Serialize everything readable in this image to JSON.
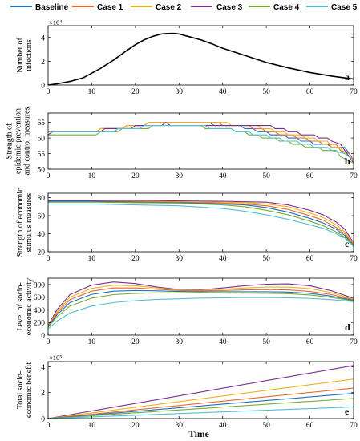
{
  "legend": [
    {
      "name": "Baseline",
      "color": "#1f6fbf"
    },
    {
      "name": "Case 1",
      "color": "#e8692a"
    },
    {
      "name": "Case 2",
      "color": "#ecb21e"
    },
    {
      "name": "Case 3",
      "color": "#7b2d8e"
    },
    {
      "name": "Case 4",
      "color": "#77ac30"
    },
    {
      "name": "Case 5",
      "color": "#4fbfd6"
    }
  ],
  "x_axis_label": "Time",
  "x_ticks": [
    "0",
    "10",
    "20",
    "30",
    "40",
    "50",
    "60",
    "70"
  ],
  "chart_data": [
    {
      "type": "line",
      "panel": "a",
      "ylabel": [
        "Number of",
        "infections"
      ],
      "multiplier": "×10⁴",
      "xlim": [
        0,
        70
      ],
      "ylim": [
        0,
        5
      ],
      "yticks": [
        "0",
        "2",
        "4"
      ],
      "series": [
        {
          "color": "#000000",
          "x": [
            0,
            2,
            5,
            8,
            10,
            12,
            15,
            18,
            20,
            22,
            24,
            26,
            28,
            29,
            30,
            32,
            35,
            38,
            40,
            45,
            50,
            55,
            60,
            65,
            70
          ],
          "y": [
            0,
            0.1,
            0.3,
            0.6,
            1.0,
            1.4,
            2.1,
            2.9,
            3.4,
            3.8,
            4.1,
            4.3,
            4.35,
            4.35,
            4.3,
            4.1,
            3.8,
            3.4,
            3.1,
            2.5,
            1.9,
            1.45,
            1.05,
            0.75,
            0.5
          ]
        }
      ]
    },
    {
      "type": "line",
      "panel": "b",
      "ylabel": [
        "Strength of",
        "epidemic prevention",
        "and control measures"
      ],
      "xlim": [
        0,
        70
      ],
      "ylim": [
        50,
        68
      ],
      "yticks": [
        "50",
        "55",
        "60",
        "65"
      ],
      "series": [
        {
          "color": "#1f6fbf",
          "x": [
            0,
            1,
            11,
            12,
            17,
            18,
            22,
            23,
            37,
            38,
            44,
            45,
            47,
            48,
            50,
            51,
            54,
            55,
            57,
            58,
            60,
            61,
            64,
            65,
            68,
            69,
            70
          ],
          "y": [
            62,
            62,
            62,
            63,
            63,
            64,
            64,
            65,
            65,
            64,
            64,
            63,
            63,
            62,
            62,
            61,
            61,
            60,
            60,
            59,
            59,
            58,
            58,
            57,
            57,
            55,
            53
          ]
        },
        {
          "color": "#e8692a",
          "x": [
            0,
            1,
            11,
            12,
            17,
            18,
            22,
            23,
            39,
            40,
            46,
            47,
            49,
            50,
            52,
            53,
            56,
            57,
            59,
            60,
            62,
            63,
            66,
            67,
            69,
            70
          ],
          "y": [
            62,
            62,
            62,
            63,
            63,
            64,
            64,
            65,
            65,
            64,
            64,
            63,
            63,
            62,
            62,
            61,
            61,
            60,
            60,
            59,
            59,
            58,
            58,
            56,
            55,
            53
          ]
        },
        {
          "color": "#ecb21e",
          "x": [
            0,
            1,
            11,
            12,
            17,
            18,
            22,
            23,
            41,
            42,
            48,
            49,
            51,
            52,
            54,
            55,
            58,
            59,
            61,
            62,
            64,
            65,
            67,
            68,
            70
          ],
          "y": [
            62,
            62,
            62,
            63,
            63,
            64,
            64,
            65,
            65,
            64,
            64,
            63,
            63,
            62,
            62,
            61,
            61,
            60,
            60,
            59,
            59,
            57,
            57,
            55,
            53
          ]
        },
        {
          "color": "#7b2d8e",
          "x": [
            0,
            1,
            12,
            13,
            19,
            20,
            26,
            27,
            28,
            43,
            44,
            51,
            52,
            54,
            55,
            57,
            58,
            61,
            62,
            64,
            65,
            67,
            68,
            70
          ],
          "y": [
            61,
            62,
            62,
            63,
            63,
            64,
            64,
            65,
            64,
            64,
            64,
            64,
            63,
            63,
            62,
            62,
            61,
            61,
            60,
            60,
            59,
            58,
            56,
            52
          ]
        },
        {
          "color": "#77ac30",
          "x": [
            0,
            1,
            11,
            12,
            16,
            17,
            23,
            24,
            35,
            36,
            42,
            43,
            45,
            46,
            48,
            49,
            52,
            53,
            55,
            56,
            58,
            59,
            62,
            63,
            66,
            67,
            70
          ],
          "y": [
            61,
            61,
            61,
            62,
            62,
            63,
            63,
            64,
            64,
            63,
            63,
            62,
            62,
            61,
            61,
            60,
            60,
            59,
            59,
            58,
            58,
            57,
            57,
            56,
            56,
            54,
            52
          ]
        },
        {
          "color": "#4fbfd6",
          "x": [
            0,
            10,
            11,
            15,
            16,
            21,
            22,
            36,
            37,
            42,
            43,
            46,
            47,
            50,
            51,
            53,
            54,
            57,
            58,
            60,
            61,
            64,
            65,
            68,
            70
          ],
          "y": [
            62,
            62,
            62,
            62,
            63,
            63,
            64,
            64,
            63,
            63,
            62,
            62,
            61,
            61,
            60,
            60,
            59,
            59,
            58,
            58,
            57,
            57,
            56,
            55,
            53
          ]
        }
      ]
    },
    {
      "type": "line",
      "panel": "c",
      "ylabel": [
        "Strength of economic",
        "stimulus measures"
      ],
      "xlim": [
        0,
        70
      ],
      "ylim": [
        20,
        85
      ],
      "yticks": [
        "20",
        "40",
        "60",
        "80"
      ],
      "series": [
        {
          "color": "#7b2d8e",
          "x": [
            0,
            10,
            20,
            30,
            40,
            45,
            50,
            55,
            60,
            63,
            66,
            68,
            70
          ],
          "y": [
            77,
            77,
            77,
            76.5,
            76,
            75.5,
            75,
            72,
            66,
            61,
            53,
            45,
            30
          ]
        },
        {
          "color": "#ecb21e",
          "x": [
            0,
            10,
            20,
            30,
            40,
            45,
            50,
            55,
            60,
            63,
            66,
            68,
            70
          ],
          "y": [
            76,
            76,
            76,
            75.5,
            75,
            74.5,
            73,
            70,
            63,
            58,
            50,
            42,
            29
          ]
        },
        {
          "color": "#e8692a",
          "x": [
            0,
            10,
            20,
            30,
            40,
            45,
            50,
            55,
            60,
            63,
            66,
            68,
            70
          ],
          "y": [
            76,
            76,
            75.5,
            75,
            74,
            73,
            71,
            67,
            60,
            55,
            47,
            40,
            28
          ]
        },
        {
          "color": "#1f6fbf",
          "x": [
            0,
            10,
            20,
            30,
            40,
            45,
            50,
            55,
            60,
            63,
            66,
            68,
            70
          ],
          "y": [
            76,
            76,
            75,
            74.5,
            73,
            72,
            69,
            64,
            57,
            52,
            45,
            38,
            27
          ]
        },
        {
          "color": "#77ac30",
          "x": [
            0,
            10,
            20,
            30,
            40,
            45,
            50,
            55,
            60,
            63,
            66,
            68,
            70
          ],
          "y": [
            75,
            75,
            74.5,
            74,
            72,
            70,
            66,
            61,
            54,
            49,
            42,
            36,
            27
          ]
        },
        {
          "color": "#4fbfd6",
          "x": [
            0,
            10,
            20,
            30,
            40,
            45,
            50,
            55,
            60,
            63,
            66,
            68,
            70
          ],
          "y": [
            73,
            73,
            72,
            71,
            68,
            65,
            61,
            56,
            50,
            46,
            40,
            35,
            26
          ]
        }
      ]
    },
    {
      "type": "line",
      "panel": "d",
      "ylabel": [
        "Level of  socio-",
        "economic activity"
      ],
      "xlim": [
        0,
        70
      ],
      "ylim": [
        0,
        900
      ],
      "yticks": [
        "0",
        "200",
        "400",
        "600",
        "800"
      ],
      "series": [
        {
          "color": "#7b2d8e",
          "x": [
            0,
            2,
            5,
            10,
            15,
            20,
            25,
            30,
            35,
            40,
            45,
            50,
            55,
            60,
            65,
            70
          ],
          "y": [
            150,
            400,
            640,
            790,
            840,
            815,
            760,
            720,
            715,
            745,
            780,
            805,
            810,
            780,
            700,
            580
          ]
        },
        {
          "color": "#ecb21e",
          "x": [
            0,
            2,
            5,
            10,
            15,
            20,
            25,
            30,
            35,
            40,
            45,
            50,
            55,
            60,
            65,
            70
          ],
          "y": [
            140,
            370,
            600,
            740,
            790,
            780,
            745,
            715,
            710,
            725,
            745,
            760,
            760,
            735,
            670,
            565
          ]
        },
        {
          "color": "#e8692a",
          "x": [
            0,
            2,
            5,
            10,
            15,
            20,
            25,
            30,
            35,
            40,
            45,
            50,
            55,
            60,
            65,
            70
          ],
          "y": [
            135,
            345,
            560,
            695,
            745,
            745,
            725,
            705,
            700,
            705,
            715,
            720,
            715,
            690,
            640,
            555
          ]
        },
        {
          "color": "#1f6fbf",
          "x": [
            0,
            2,
            5,
            10,
            15,
            20,
            25,
            30,
            35,
            40,
            45,
            50,
            55,
            60,
            65,
            70
          ],
          "y": [
            130,
            320,
            515,
            645,
            695,
            705,
            700,
            690,
            685,
            685,
            685,
            685,
            680,
            660,
            615,
            548
          ]
        },
        {
          "color": "#77ac30",
          "x": [
            0,
            2,
            5,
            10,
            15,
            20,
            25,
            30,
            35,
            40,
            45,
            50,
            55,
            60,
            65,
            70
          ],
          "y": [
            125,
            290,
            460,
            585,
            640,
            660,
            668,
            668,
            668,
            665,
            665,
            662,
            655,
            635,
            595,
            540
          ]
        },
        {
          "color": "#4fbfd6",
          "x": [
            0,
            2,
            5,
            10,
            15,
            20,
            25,
            30,
            35,
            40,
            45,
            50,
            55,
            60,
            65,
            70
          ],
          "y": [
            100,
            220,
            350,
            460,
            515,
            545,
            565,
            575,
            585,
            590,
            595,
            595,
            590,
            580,
            560,
            530
          ]
        }
      ]
    },
    {
      "type": "line",
      "panel": "e",
      "ylabel": [
        "Total socio-",
        "economic benefit"
      ],
      "multiplier": "×10⁵",
      "xlim": [
        0,
        70
      ],
      "ylim": [
        0,
        4.4
      ],
      "yticks": [
        "0",
        "2",
        "4"
      ],
      "series": [
        {
          "color": "#7b2d8e",
          "x": [
            0,
            70
          ],
          "y": [
            0,
            4.1
          ]
        },
        {
          "color": "#ecb21e",
          "x": [
            0,
            70
          ],
          "y": [
            0,
            3.05
          ]
        },
        {
          "color": "#e8692a",
          "x": [
            0,
            70
          ],
          "y": [
            0,
            2.35
          ]
        },
        {
          "color": "#1f6fbf",
          "x": [
            0,
            70
          ],
          "y": [
            0,
            1.95
          ]
        },
        {
          "color": "#77ac30",
          "x": [
            0,
            70
          ],
          "y": [
            0,
            1.55
          ]
        },
        {
          "color": "#4fbfd6",
          "x": [
            0,
            70
          ],
          "y": [
            0,
            0.9
          ]
        }
      ]
    }
  ]
}
